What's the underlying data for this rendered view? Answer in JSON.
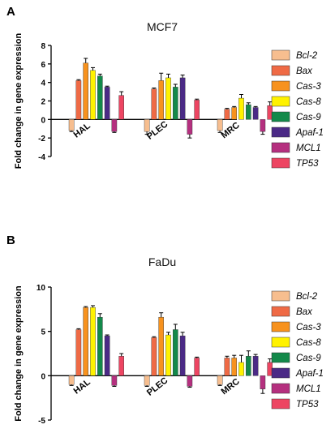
{
  "panels": [
    {
      "letter": "A"
    },
    {
      "letter": "B"
    }
  ],
  "chart_data": [
    {
      "type": "bar",
      "title": "MCF7",
      "ylabel": "Fold change in gene expression",
      "ylim": [
        -4,
        8
      ],
      "yticks": [
        "-4",
        "-2",
        "0",
        "2",
        "4",
        "6",
        "8"
      ],
      "categories": [
        "HAL",
        "PLEC",
        "MRC"
      ],
      "series": [
        {
          "name": "Bcl-2",
          "color": "#f7be8f",
          "values": [
            -1.2,
            -1.3,
            -1.2
          ],
          "errors": [
            0.1,
            0.3,
            0.2
          ]
        },
        {
          "name": "Bax",
          "color": "#ef6a45",
          "values": [
            4.2,
            3.3,
            1.1
          ],
          "errors": [
            0.1,
            0.1,
            0.1
          ]
        },
        {
          "name": "Cas-3",
          "color": "#f7921e",
          "values": [
            6.1,
            4.2,
            1.3
          ],
          "errors": [
            0.5,
            0.8,
            0.1
          ]
        },
        {
          "name": "Cas-8",
          "color": "#fff200",
          "values": [
            5.3,
            4.5,
            2.3
          ],
          "errors": [
            0.3,
            0.4,
            0.4
          ]
        },
        {
          "name": "Cas-9",
          "color": "#13894a",
          "values": [
            4.7,
            3.5,
            1.6
          ],
          "errors": [
            0.2,
            0.3,
            0.2
          ]
        },
        {
          "name": "Apaf-1",
          "color": "#4b2a86",
          "values": [
            3.5,
            4.5,
            1.3
          ],
          "errors": [
            0.1,
            0.3,
            0.1
          ]
        },
        {
          "name": "MCL1",
          "color": "#b5307f",
          "values": [
            -1.3,
            -1.6,
            -1.3
          ],
          "errors": [
            0.1,
            0.4,
            0.3
          ]
        },
        {
          "name": "TP53",
          "color": "#ed4562",
          "values": [
            2.6,
            2.1,
            1.5
          ],
          "errors": [
            0.4,
            0.1,
            0.4
          ]
        }
      ]
    },
    {
      "type": "bar",
      "title": "FaDu",
      "ylabel": "Fold change in gene expression",
      "ylim": [
        -5,
        10
      ],
      "yticks": [
        "-5",
        "0",
        "5",
        "10"
      ],
      "categories": [
        "HAL",
        "PLEC",
        "MRC"
      ],
      "series": [
        {
          "name": "Bcl-2",
          "color": "#f7be8f",
          "values": [
            -1.0,
            -1.1,
            -1.0
          ],
          "errors": [
            0.1,
            0.1,
            0.1
          ]
        },
        {
          "name": "Bax",
          "color": "#ef6a45",
          "values": [
            5.2,
            4.3,
            2.0
          ],
          "errors": [
            0.1,
            0.1,
            0.2
          ]
        },
        {
          "name": "Cas-3",
          "color": "#f7921e",
          "values": [
            7.7,
            6.6,
            2.0
          ],
          "errors": [
            0.1,
            0.5,
            0.3
          ]
        },
        {
          "name": "Cas-8",
          "color": "#fff200",
          "values": [
            7.7,
            4.6,
            1.5
          ],
          "errors": [
            0.2,
            0.3,
            0.8
          ]
        },
        {
          "name": "Cas-9",
          "color": "#13894a",
          "values": [
            6.6,
            5.2,
            2.2
          ],
          "errors": [
            0.4,
            0.6,
            0.6
          ]
        },
        {
          "name": "Apaf-1",
          "color": "#4b2a86",
          "values": [
            4.5,
            4.5,
            2.2
          ],
          "errors": [
            0.1,
            0.4,
            0.2
          ]
        },
        {
          "name": "MCL1",
          "color": "#b5307f",
          "values": [
            -1.1,
            -1.2,
            -1.5
          ],
          "errors": [
            0.1,
            0.1,
            0.5
          ]
        },
        {
          "name": "TP53",
          "color": "#ed4562",
          "values": [
            2.2,
            2.0,
            1.5
          ],
          "errors": [
            0.3,
            0.1,
            0.4
          ]
        }
      ]
    }
  ]
}
